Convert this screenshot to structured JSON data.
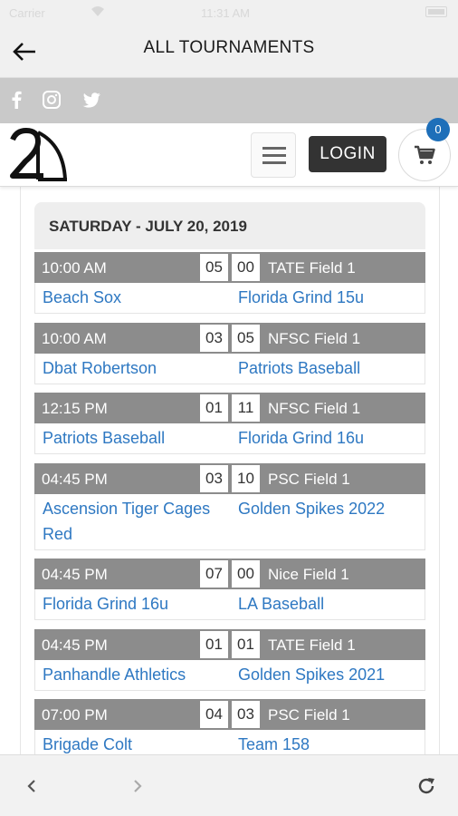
{
  "status": {
    "carrier": "Carrier",
    "time": "11:31 AM"
  },
  "header": {
    "title": "ALL TOURNAMENTS"
  },
  "site": {
    "login_label": "LOGIN",
    "cart_count": "0"
  },
  "day": {
    "label": "SATURDAY - JULY 20, 2019"
  },
  "games": [
    {
      "time": "10:00 AM",
      "score_a": "05",
      "score_b": "00",
      "field": "TATE Field 1",
      "home": "Beach Sox",
      "away": "Florida Grind 15u"
    },
    {
      "time": "10:00 AM",
      "score_a": "03",
      "score_b": "05",
      "field": "NFSC Field 1",
      "home": "Dbat Robertson",
      "away": "Patriots Baseball"
    },
    {
      "time": "12:15 PM",
      "score_a": "01",
      "score_b": "11",
      "field": "NFSC Field 1",
      "home": "Patriots Baseball",
      "away": "Florida Grind 16u"
    },
    {
      "time": "04:45 PM",
      "score_a": "03",
      "score_b": "10",
      "field": "PSC Field 1",
      "home": "Ascension Tiger Cages Red",
      "away": "Golden Spikes 2022"
    },
    {
      "time": "04:45 PM",
      "score_a": "07",
      "score_b": "00",
      "field": "Nice Field 1",
      "home": "Florida Grind 16u",
      "away": "LA Baseball"
    },
    {
      "time": "04:45 PM",
      "score_a": "01",
      "score_b": "01",
      "field": "TATE Field 1",
      "home": "Panhandle Athletics",
      "away": "Golden Spikes 2021"
    },
    {
      "time": "07:00 PM",
      "score_a": "04",
      "score_b": "03",
      "field": "PSC Field 1",
      "home": "Brigade Colt",
      "away": "Team 158"
    }
  ],
  "icons": {
    "back": "arrow-left-icon",
    "facebook": "facebook-icon",
    "instagram": "instagram-icon",
    "twitter": "twitter-icon",
    "menu": "hamburger-icon",
    "cart": "cart-icon",
    "prev": "chevron-left-icon",
    "next": "chevron-right-icon",
    "refresh": "refresh-icon"
  },
  "colors": {
    "link": "#2e78c2",
    "game_header": "#8c8c8c",
    "badge": "#1e6fb9",
    "login": "#333333"
  }
}
